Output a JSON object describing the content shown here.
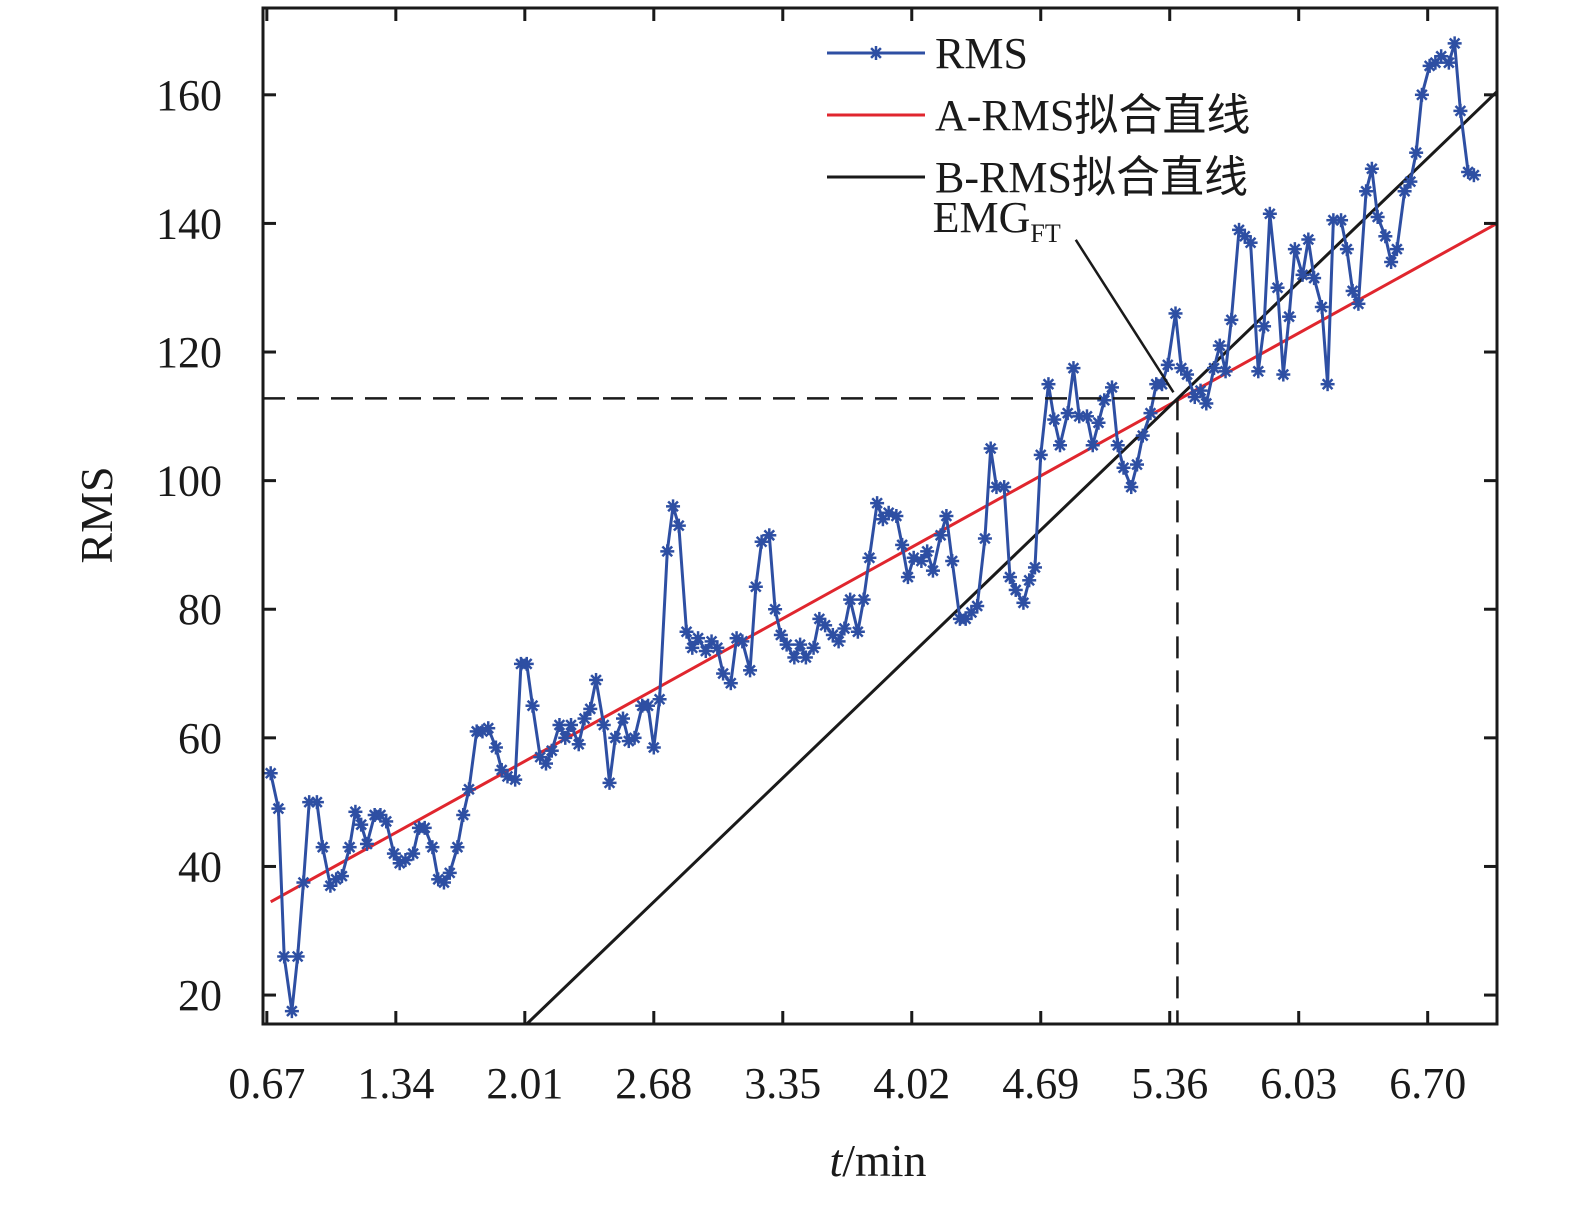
{
  "chart_data": {
    "type": "line",
    "xlabel_italic": "t",
    "xlabel_rest": "/min",
    "ylabel": "RMS",
    "xlim": [
      0.65,
      7.06
    ],
    "ylim": [
      15.5,
      173.5
    ],
    "xticks": [
      0.67,
      1.34,
      2.01,
      2.68,
      3.35,
      4.02,
      4.69,
      5.36,
      6.03,
      6.7
    ],
    "xtick_labels": [
      "0.67",
      "1.34",
      "2.01",
      "2.68",
      "3.35",
      "4.02",
      "4.69",
      "5.36",
      "6.03",
      "6.70"
    ],
    "yticks": [
      20,
      40,
      60,
      80,
      100,
      120,
      140,
      160
    ],
    "ytick_labels": [
      "20",
      "40",
      "60",
      "80",
      "100",
      "120",
      "140",
      "160"
    ],
    "legend_position": "top-right",
    "series": [
      {
        "name": "RMS",
        "color": "#2e4fa3",
        "marker": "asterisk",
        "x": [
          0.69,
          0.73,
          0.76,
          0.8,
          0.83,
          0.86,
          0.89,
          0.93,
          0.96,
          1.0,
          1.03,
          1.06,
          1.1,
          1.13,
          1.16,
          1.19,
          1.23,
          1.26,
          1.29,
          1.33,
          1.36,
          1.39,
          1.43,
          1.46,
          1.49,
          1.53,
          1.56,
          1.59,
          1.62,
          1.66,
          1.69,
          1.72,
          1.76,
          1.79,
          1.82,
          1.86,
          1.89,
          1.92,
          1.96,
          1.99,
          2.02,
          2.05,
          2.09,
          2.12,
          2.15,
          2.19,
          2.22,
          2.25,
          2.29,
          2.32,
          2.35,
          2.38,
          2.42,
          2.45,
          2.48,
          2.52,
          2.55,
          2.58,
          2.62,
          2.65,
          2.68,
          2.71,
          2.75,
          2.78,
          2.81,
          2.85,
          2.88,
          2.91,
          2.95,
          2.98,
          3.01,
          3.04,
          3.08,
          3.11,
          3.14,
          3.18,
          3.21,
          3.24,
          3.28,
          3.31,
          3.34,
          3.37,
          3.41,
          3.44,
          3.47,
          3.51,
          3.54,
          3.57,
          3.61,
          3.64,
          3.67,
          3.7,
          3.74,
          3.77,
          3.8,
          3.84,
          3.87,
          3.9,
          3.94,
          3.97,
          4.0,
          4.03,
          4.07,
          4.1,
          4.13,
          4.17,
          4.2,
          4.23,
          4.27,
          4.3,
          4.33,
          4.36,
          4.4,
          4.43,
          4.46,
          4.5,
          4.53,
          4.56,
          4.6,
          4.63,
          4.66,
          4.69,
          4.73,
          4.76,
          4.79,
          4.83,
          4.86,
          4.89,
          4.93,
          4.96,
          4.99,
          5.02,
          5.06,
          5.09,
          5.12,
          5.16,
          5.19,
          5.22,
          5.26,
          5.29,
          5.32,
          5.35,
          5.39,
          5.42,
          5.45,
          5.49,
          5.52,
          5.55,
          5.59,
          5.62,
          5.65,
          5.68,
          5.72,
          5.75,
          5.78,
          5.82,
          5.85,
          5.88,
          5.92,
          5.95,
          5.98,
          6.01,
          6.05,
          6.08,
          6.11,
          6.15,
          6.18,
          6.21,
          6.25,
          6.28,
          6.31,
          6.34,
          6.38,
          6.41,
          6.44,
          6.48,
          6.51,
          6.54,
          6.58,
          6.61,
          6.64,
          6.67,
          6.71,
          6.74,
          6.77,
          6.81,
          6.84,
          6.87,
          6.91,
          6.94
        ],
        "y": [
          54.5,
          49,
          26,
          17.5,
          26,
          37.5,
          50,
          50,
          43,
          37,
          38,
          38.5,
          43,
          48.5,
          46.5,
          43.5,
          48,
          48,
          47,
          42,
          40.5,
          41,
          42,
          46,
          46,
          43,
          38,
          37.5,
          39,
          43,
          48,
          52,
          61,
          61,
          61.5,
          58.5,
          55,
          54,
          53.5,
          71.5,
          71.5,
          65,
          57,
          56,
          58,
          62,
          60,
          62,
          59,
          63,
          64.5,
          69,
          62,
          53,
          60,
          63,
          59.5,
          60,
          65,
          65,
          58.5,
          66,
          89,
          96,
          93,
          76.5,
          74,
          75.5,
          73.5,
          75,
          74,
          70,
          68.5,
          75.5,
          75,
          70.5,
          83.5,
          90.5,
          91.5,
          80,
          76,
          74.5,
          72.5,
          74.5,
          72.5,
          74,
          78.5,
          77.5,
          76,
          75,
          77,
          81.5,
          76.5,
          81.5,
          88,
          96.5,
          94,
          95,
          94.5,
          90,
          85,
          88,
          87.5,
          89,
          86,
          91.5,
          94.5,
          87.5,
          78.5,
          78.5,
          79.5,
          80.5,
          91,
          105,
          99,
          99,
          85,
          83,
          81,
          84.5,
          86.5,
          104,
          115,
          109.5,
          105.5,
          110.5,
          117.5,
          110,
          110,
          105.5,
          109,
          112.5,
          114.5,
          105.5,
          102,
          99,
          102.5,
          107,
          110.5,
          115,
          115,
          118,
          126,
          117.5,
          116.5,
          113,
          114,
          112,
          117.5,
          121,
          117,
          125,
          139,
          138,
          137,
          117,
          124,
          141.5,
          130,
          116.5,
          125.5,
          136,
          132,
          137.5,
          131.5,
          127,
          115,
          140.5,
          140.5,
          136,
          129.5,
          127.5,
          145,
          148.5,
          141,
          138,
          134,
          136,
          145,
          146.5,
          151,
          160,
          164.5,
          165,
          166,
          165,
          168,
          157.5,
          148,
          147.5
        ]
      },
      {
        "name": "A-RMS拟合直线",
        "color": "#e0262e",
        "x": [
          0.69,
          7.06
        ],
        "y": [
          34.5,
          140
        ]
      },
      {
        "name": "B-RMS拟合直线",
        "color": "#1a1a1a",
        "x": [
          2.02,
          7.06
        ],
        "y": [
          15.5,
          160.5
        ]
      }
    ],
    "threshold": {
      "label_main": "EMG",
      "label_sub": "FT",
      "x": 5.4,
      "y": 112.8,
      "label_x": 4.82,
      "label_y": 139
    }
  }
}
